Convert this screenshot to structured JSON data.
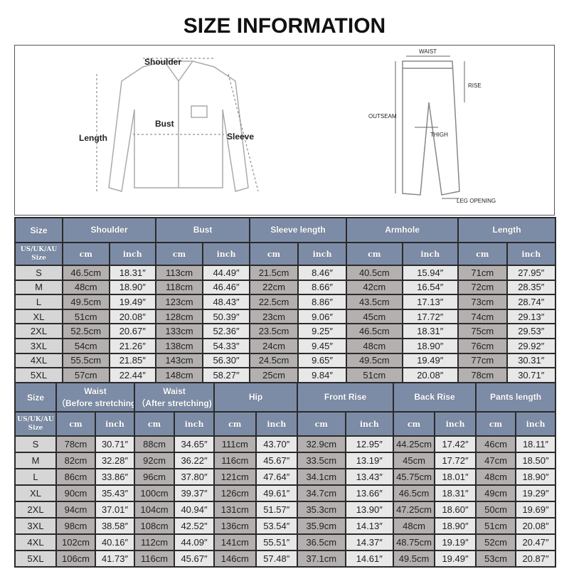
{
  "title": "SIZE INFORMATION",
  "shirt_labels": {
    "shoulder": "Shoulder",
    "bust": "Bust",
    "length": "Length",
    "sleeve": "Sleeve"
  },
  "pants_labels": {
    "waist": "WAIST",
    "rise": "RISE",
    "outseam": "OUTSEAM",
    "thigh": "THIGH",
    "leg_opening": "LEG OPENING"
  },
  "colors": {
    "header": "#7d8ca6",
    "cm_cell": "#b4b0af",
    "inch_cell": "#e8e8e8",
    "size_cell": "#d6d6d6"
  },
  "top_table": {
    "size_header": "Size",
    "size_sub": "US/UK/AU Size",
    "unit_cm": "cm",
    "unit_inch": "inch",
    "groups": [
      "Shoulder",
      "Bust",
      "Sleeve length",
      "Armhole",
      "Length"
    ],
    "rows": [
      [
        "S",
        "46.5cm",
        "18.31″",
        "113cm",
        "44.49″",
        "21.5cm",
        "8.46″",
        "40.5cm",
        "15.94″",
        "71cm",
        "27.95″"
      ],
      [
        "M",
        "48cm",
        "18.90″",
        "118cm",
        "46.46″",
        "22cm",
        "8.66″",
        "42cm",
        "16.54″",
        "72cm",
        "28.35″"
      ],
      [
        "L",
        "49.5cm",
        "19.49″",
        "123cm",
        "48.43″",
        "22.5cm",
        "8.86″",
        "43.5cm",
        "17.13″",
        "73cm",
        "28.74″"
      ],
      [
        "XL",
        "51cm",
        "20.08″",
        "128cm",
        "50.39″",
        "23cm",
        "9.06″",
        "45cm",
        "17.72″",
        "74cm",
        "29.13″"
      ],
      [
        "2XL",
        "52.5cm",
        "20.67″",
        "133cm",
        "52.36″",
        "23.5cm",
        "9.25″",
        "46.5cm",
        "18.31″",
        "75cm",
        "29.53″"
      ],
      [
        "3XL",
        "54cm",
        "21.26″",
        "138cm",
        "54.33″",
        "24cm",
        "9.45″",
        "48cm",
        "18.90″",
        "76cm",
        "29.92″"
      ],
      [
        "4XL",
        "55.5cm",
        "21.85″",
        "143cm",
        "56.30″",
        "24.5cm",
        "9.65″",
        "49.5cm",
        "19.49″",
        "77cm",
        "30.31″"
      ],
      [
        "5XL",
        "57cm",
        "22.44″",
        "148cm",
        "58.27″",
        "25cm",
        "9.84″",
        "51cm",
        "20.08″",
        "78cm",
        "30.71″"
      ]
    ]
  },
  "bottom_table": {
    "size_header": "Size",
    "size_sub": "US/UK/AU Size",
    "unit_cm": "cm",
    "unit_inch": "inch",
    "groups": [
      "Waist\n（Before stretching)",
      "Waist\n（After stretching)",
      "Hip",
      "Front Rise",
      "Back Rise",
      "Pants length"
    ],
    "rows": [
      [
        "S",
        "78cm",
        "30.71″",
        "88cm",
        "34.65″",
        "111cm",
        "43.70″",
        "32.9cm",
        "12.95″",
        "44.25cm",
        "17.42″",
        "46cm",
        "18.11″"
      ],
      [
        "M",
        "82cm",
        "32.28″",
        "92cm",
        "36.22″",
        "116cm",
        "45.67″",
        "33.5cm",
        "13.19″",
        "45cm",
        "17.72″",
        "47cm",
        "18.50″"
      ],
      [
        "L",
        "86cm",
        "33.86″",
        "96cm",
        "37.80″",
        "121cm",
        "47.64″",
        "34.1cm",
        "13.43″",
        "45.75cm",
        "18.01″",
        "48cm",
        "18.90″"
      ],
      [
        "XL",
        "90cm",
        "35.43″",
        "100cm",
        "39.37″",
        "126cm",
        "49.61″",
        "34.7cm",
        "13.66″",
        "46.5cm",
        "18.31″",
        "49cm",
        "19.29″"
      ],
      [
        "2XL",
        "94cm",
        "37.01″",
        "104cm",
        "40.94″",
        "131cm",
        "51.57″",
        "35.3cm",
        "13.90″",
        "47.25cm",
        "18.60″",
        "50cm",
        "19.69″"
      ],
      [
        "3XL",
        "98cm",
        "38.58″",
        "108cm",
        "42.52″",
        "136cm",
        "53.54″",
        "35.9cm",
        "14.13″",
        "48cm",
        "18.90″",
        "51cm",
        "20.08″"
      ],
      [
        "4XL",
        "102cm",
        "40.16″",
        "112cm",
        "44.09″",
        "141cm",
        "55.51″",
        "36.5cm",
        "14.37″",
        "48.75cm",
        "19.19″",
        "52cm",
        "20.47″"
      ],
      [
        "5XL",
        "106cm",
        "41.73″",
        "116cm",
        "45.67″",
        "146cm",
        "57.48″",
        "37.1cm",
        "14.61″",
        "49.5cm",
        "19.49″",
        "53cm",
        "20.87″"
      ]
    ]
  }
}
